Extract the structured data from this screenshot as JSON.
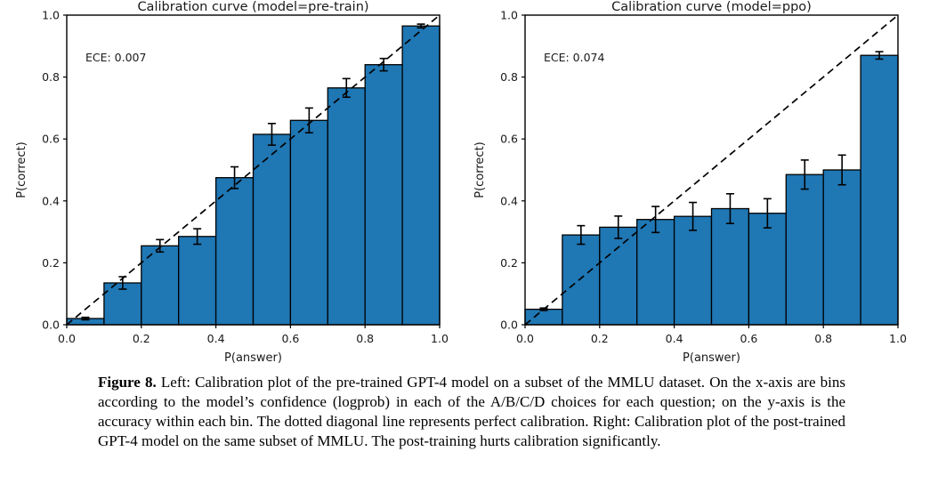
{
  "figure": {
    "caption_label": "Figure 8.",
    "caption_text": "Left: Calibration plot of the pre-trained GPT-4 model on a subset of the MMLU dataset. On the x-axis are bins according to the model’s confidence (logprob) in each of the A/B/C/D choices for each question; on the y-axis is the accuracy within each bin. The dotted diagonal line represents perfect calibration. Right: Calibration plot of the post-trained GPT-4 model on the same subset of MMLU. The post-training hurts calibration significantly."
  },
  "colors": {
    "bar_fill": "#1f77b4",
    "bar_edge": "#000000",
    "diagonal_line": "#000000",
    "axis": "#000000",
    "text": "#1a1a1a"
  },
  "chart_data": [
    {
      "type": "bar",
      "title": "Calibration curve (model=pre-train)",
      "annotation": "ECE: 0.007",
      "xlabel": "P(answer)",
      "ylabel": "P(correct)",
      "xlim": [
        0.0,
        1.0
      ],
      "ylim": [
        0.0,
        1.0
      ],
      "grid": false,
      "diagonal_reference_line": true,
      "xticks": [
        "0.0",
        "0.2",
        "0.4",
        "0.6",
        "0.8",
        "1.0"
      ],
      "yticks": [
        "0.0",
        "0.2",
        "0.4",
        "0.6",
        "0.8",
        "1.0"
      ],
      "bin_edges": [
        0.0,
        0.1,
        0.2,
        0.3,
        0.4,
        0.5,
        0.6,
        0.7,
        0.8,
        0.9,
        1.0
      ],
      "values": [
        0.02,
        0.135,
        0.255,
        0.285,
        0.475,
        0.615,
        0.66,
        0.765,
        0.84,
        0.965
      ],
      "errors": [
        0.004,
        0.02,
        0.02,
        0.025,
        0.035,
        0.035,
        0.04,
        0.03,
        0.02,
        0.006
      ]
    },
    {
      "type": "bar",
      "title": "Calibration curve (model=ppo)",
      "annotation": "ECE: 0.074",
      "xlabel": "P(answer)",
      "ylabel": "P(correct)",
      "xlim": [
        0.0,
        1.0
      ],
      "ylim": [
        0.0,
        1.0
      ],
      "grid": false,
      "diagonal_reference_line": true,
      "xticks": [
        "0.0",
        "0.2",
        "0.4",
        "0.6",
        "0.8",
        "1.0"
      ],
      "yticks": [
        "0.0",
        "0.2",
        "0.4",
        "0.6",
        "0.8",
        "1.0"
      ],
      "bin_edges": [
        0.0,
        0.1,
        0.2,
        0.3,
        0.4,
        0.5,
        0.6,
        0.7,
        0.8,
        0.9,
        1.0
      ],
      "values": [
        0.05,
        0.29,
        0.315,
        0.34,
        0.35,
        0.375,
        0.36,
        0.485,
        0.5,
        0.87
      ],
      "errors": [
        0.004,
        0.03,
        0.036,
        0.042,
        0.045,
        0.048,
        0.047,
        0.047,
        0.048,
        0.012
      ]
    }
  ]
}
